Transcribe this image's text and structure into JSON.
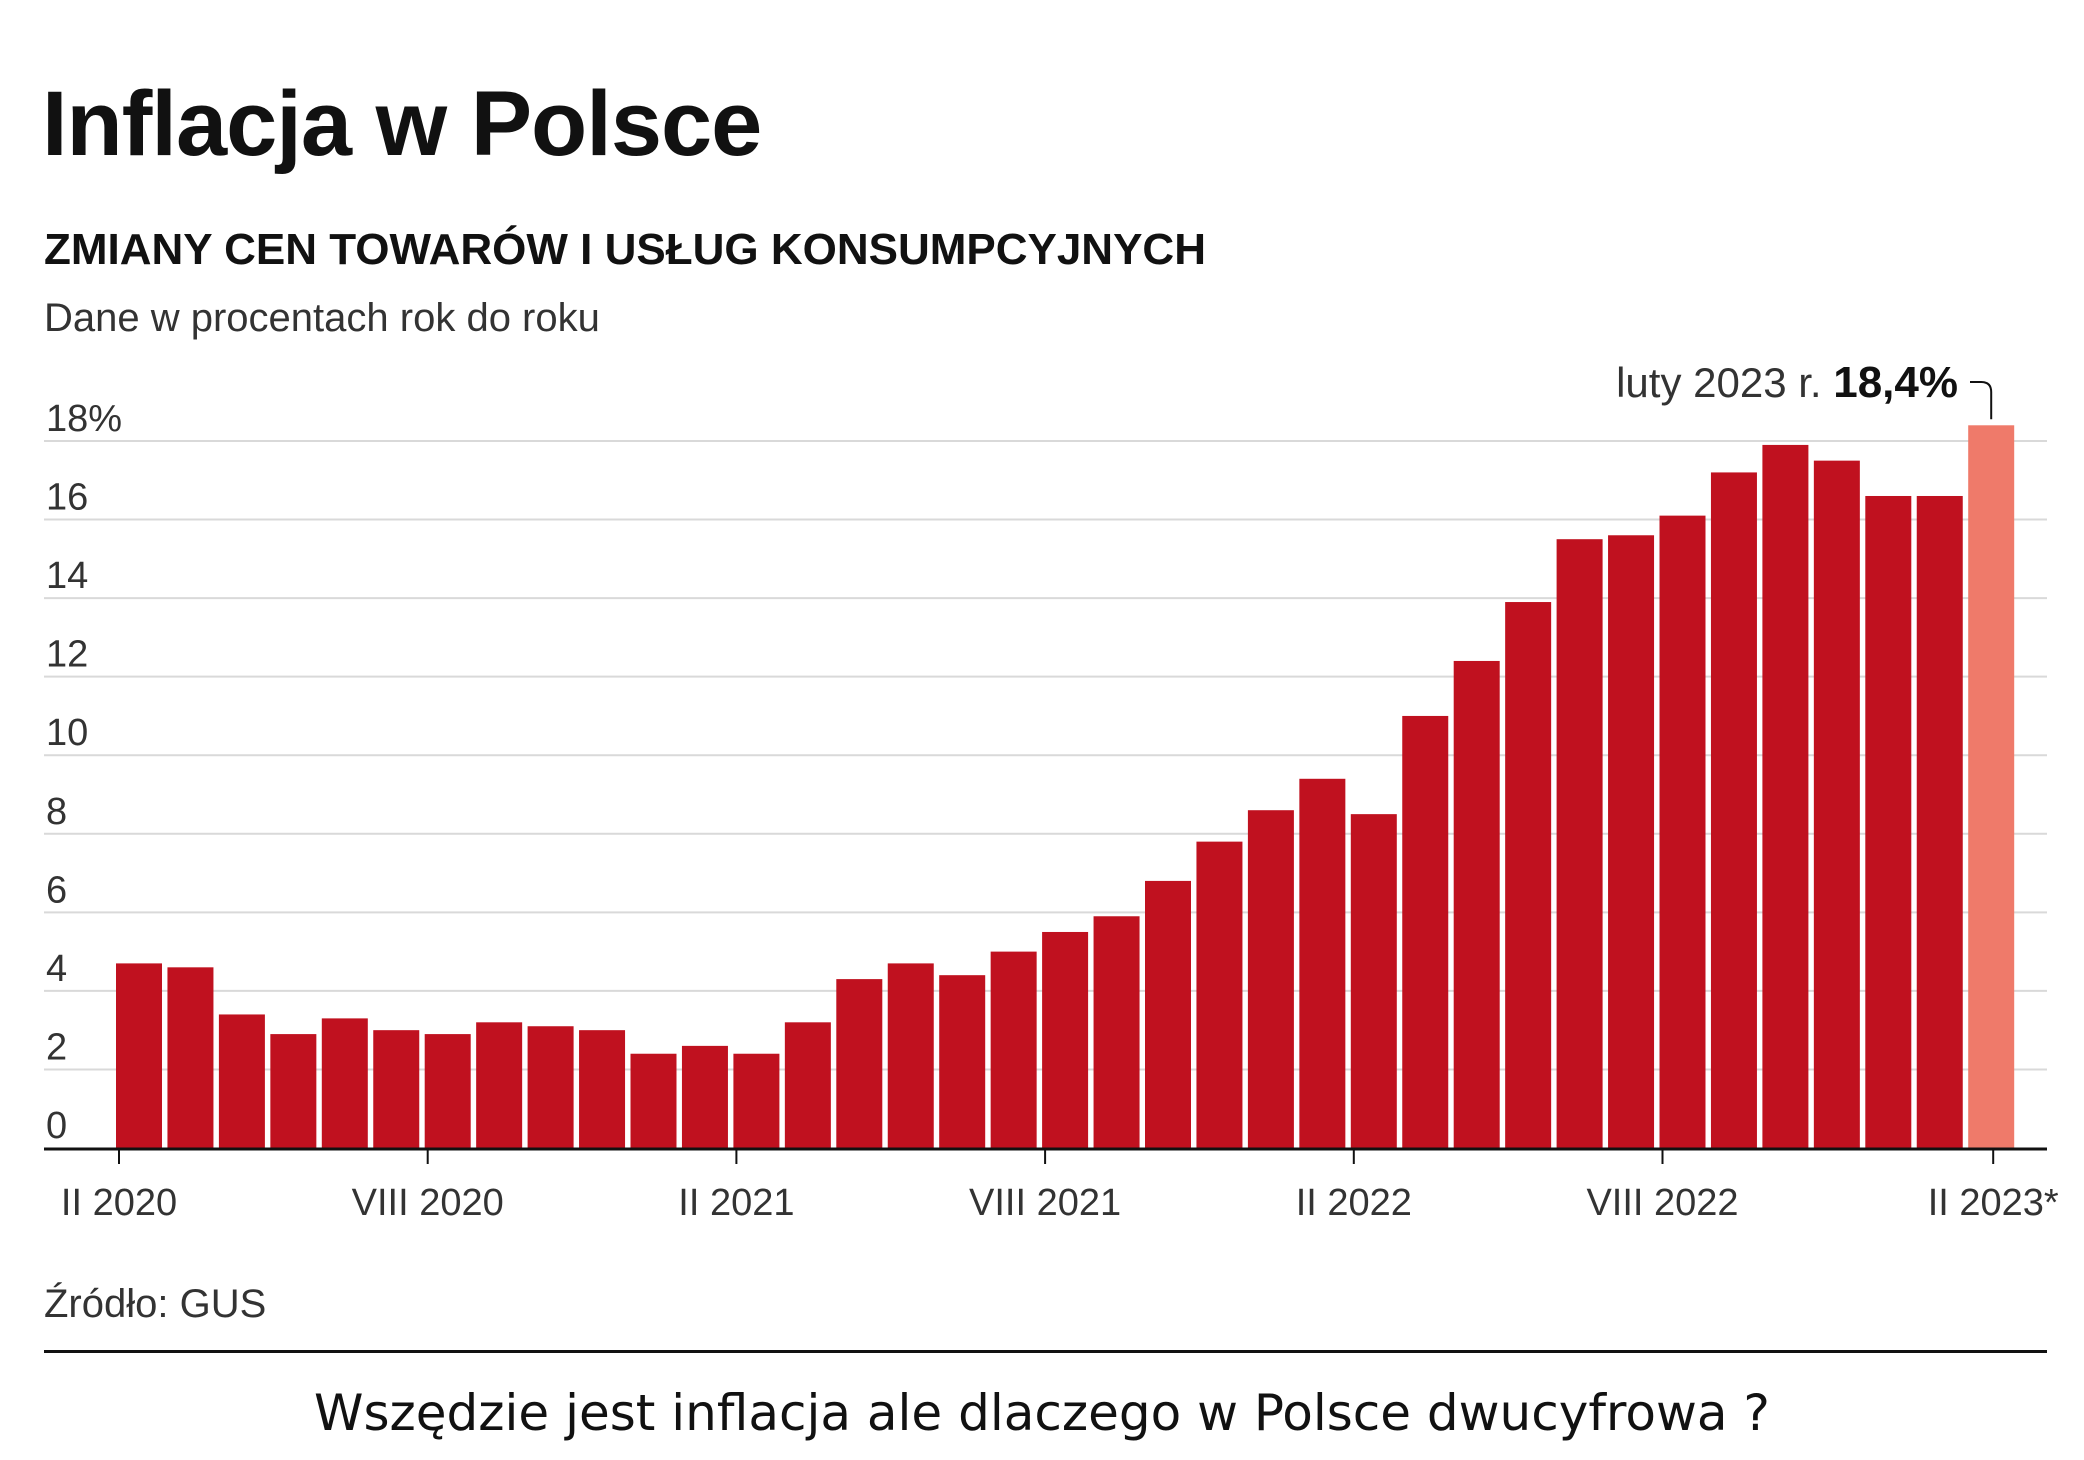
{
  "chart_data": {
    "type": "bar",
    "title": "Inflacja w Polsce",
    "subtitle": "ZMIANY CEN TOWARÓW I USŁUG KONSUMPCYJNYCH",
    "units": "Dane w procentach rok do roku",
    "source": "Źródło: GUS",
    "ylim": [
      0,
      18
    ],
    "yticks": [
      {
        "value": 0,
        "label": "0"
      },
      {
        "value": 2,
        "label": "2"
      },
      {
        "value": 4,
        "label": "4"
      },
      {
        "value": 6,
        "label": "6"
      },
      {
        "value": 8,
        "label": "8"
      },
      {
        "value": 10,
        "label": "10"
      },
      {
        "value": 12,
        "label": "12"
      },
      {
        "value": 14,
        "label": "14"
      },
      {
        "value": 16,
        "label": "16"
      },
      {
        "value": 18,
        "label": "18%"
      }
    ],
    "grid": true,
    "xtick_labels": [
      {
        "index": 0,
        "label": "II 2020"
      },
      {
        "index": 6,
        "label": "VIII 2020"
      },
      {
        "index": 12,
        "label": "II 2021"
      },
      {
        "index": 18,
        "label": "VIII 2021"
      },
      {
        "index": 24,
        "label": "II 2022"
      },
      {
        "index": 30,
        "label": "VIII 2022"
      },
      {
        "index": 36,
        "label": "II 2023*"
      }
    ],
    "values": [
      4.7,
      4.6,
      3.4,
      2.9,
      3.3,
      3.0,
      2.9,
      3.2,
      3.1,
      3.0,
      2.4,
      2.6,
      2.4,
      3.2,
      4.3,
      4.7,
      4.4,
      5.0,
      5.5,
      5.9,
      6.8,
      7.8,
      8.6,
      9.4,
      8.5,
      11.0,
      12.4,
      13.9,
      15.5,
      15.6,
      16.1,
      17.2,
      17.9,
      17.5,
      16.6,
      16.6,
      18.4
    ],
    "bar_color": "#c0111f",
    "highlight_color": "#ef7a6a",
    "highlight_index": 36,
    "annotation": {
      "prefix": "luty 2023 r.",
      "value_label": "18,4%",
      "index": 36
    }
  },
  "footer": {
    "caption": "Wszędzie jest inflacja ale dlaczego w Polsce dwucyfrowa ?"
  }
}
